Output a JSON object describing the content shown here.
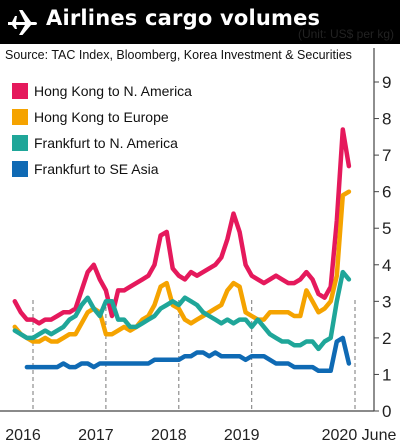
{
  "title": "Airlines cargo volumes",
  "unit": "(Unit: US$ per kg)",
  "source": "Source: TAC Index, Bloomberg, Korea Investment & Securities",
  "icons": {
    "title": "airplane-icon"
  },
  "chart_data": {
    "type": "line",
    "title": "Airlines cargo volumes",
    "ylabel": "",
    "ylim": [
      0,
      9
    ],
    "y_ticks": [
      "0",
      "1",
      "2",
      "3",
      "4",
      "5",
      "6",
      "7",
      "8",
      "9"
    ],
    "x_ticks": [
      {
        "label": "2016",
        "x": "2016-01"
      },
      {
        "label": "2017",
        "x": "2017-01"
      },
      {
        "label": "2018",
        "x": "2018-01"
      },
      {
        "label": "2019",
        "x": "2019-01"
      },
      {
        "label": "2020 June",
        "x": "2020-06"
      }
    ],
    "x_range": [
      "2015-10",
      "2020-07"
    ],
    "grid": false,
    "legend_position": "top-left",
    "series": [
      {
        "name": "Hong Kong to N. America",
        "color": "#e5195c",
        "points": [
          [
            "2015-10",
            3.0
          ],
          [
            "2015-11",
            2.7
          ],
          [
            "2015-12",
            2.5
          ],
          [
            "2016-01",
            2.5
          ],
          [
            "2016-02",
            2.4
          ],
          [
            "2016-03",
            2.5
          ],
          [
            "2016-04",
            2.5
          ],
          [
            "2016-05",
            2.6
          ],
          [
            "2016-06",
            2.7
          ],
          [
            "2016-07",
            2.7
          ],
          [
            "2016-08",
            2.8
          ],
          [
            "2016-09",
            3.3
          ],
          [
            "2016-10",
            3.8
          ],
          [
            "2016-11",
            4.0
          ],
          [
            "2016-12",
            3.6
          ],
          [
            "2017-01",
            3.3
          ],
          [
            "2017-02",
            2.6
          ],
          [
            "2017-03",
            3.3
          ],
          [
            "2017-04",
            3.3
          ],
          [
            "2017-05",
            3.4
          ],
          [
            "2017-06",
            3.5
          ],
          [
            "2017-07",
            3.6
          ],
          [
            "2017-08",
            3.7
          ],
          [
            "2017-09",
            4.0
          ],
          [
            "2017-10",
            4.8
          ],
          [
            "2017-11",
            4.9
          ],
          [
            "2017-12",
            3.9
          ],
          [
            "2018-01",
            3.7
          ],
          [
            "2018-02",
            3.6
          ],
          [
            "2018-03",
            3.8
          ],
          [
            "2018-04",
            3.7
          ],
          [
            "2018-05",
            3.8
          ],
          [
            "2018-06",
            3.9
          ],
          [
            "2018-07",
            4.0
          ],
          [
            "2018-08",
            4.2
          ],
          [
            "2018-09",
            4.7
          ],
          [
            "2018-10",
            5.4
          ],
          [
            "2018-11",
            4.9
          ],
          [
            "2018-12",
            4.0
          ],
          [
            "2019-01",
            3.7
          ],
          [
            "2019-02",
            3.6
          ],
          [
            "2019-03",
            3.5
          ],
          [
            "2019-04",
            3.6
          ],
          [
            "2019-05",
            3.7
          ],
          [
            "2019-06",
            3.6
          ],
          [
            "2019-07",
            3.5
          ],
          [
            "2019-08",
            3.5
          ],
          [
            "2019-09",
            3.6
          ],
          [
            "2019-10",
            3.8
          ],
          [
            "2019-11",
            3.6
          ],
          [
            "2019-12",
            3.2
          ],
          [
            "2020-01",
            3.1
          ],
          [
            "2020-02",
            3.4
          ],
          [
            "2020-03",
            5.2
          ],
          [
            "2020-04",
            7.7
          ],
          [
            "2020-05",
            6.7
          ]
        ]
      },
      {
        "name": "Hong Kong to Europe",
        "color": "#f5a300",
        "points": [
          [
            "2015-10",
            2.3
          ],
          [
            "2015-11",
            2.1
          ],
          [
            "2015-12",
            2.0
          ],
          [
            "2016-01",
            1.9
          ],
          [
            "2016-02",
            1.9
          ],
          [
            "2016-03",
            2.0
          ],
          [
            "2016-04",
            1.9
          ],
          [
            "2016-05",
            1.9
          ],
          [
            "2016-06",
            2.0
          ],
          [
            "2016-07",
            2.1
          ],
          [
            "2016-08",
            2.1
          ],
          [
            "2016-09",
            2.4
          ],
          [
            "2016-10",
            2.7
          ],
          [
            "2016-11",
            2.8
          ],
          [
            "2016-12",
            2.7
          ],
          [
            "2017-01",
            2.1
          ],
          [
            "2017-02",
            2.1
          ],
          [
            "2017-03",
            2.2
          ],
          [
            "2017-04",
            2.3
          ],
          [
            "2017-05",
            2.2
          ],
          [
            "2017-06",
            2.3
          ],
          [
            "2017-07",
            2.5
          ],
          [
            "2017-08",
            2.6
          ],
          [
            "2017-09",
            2.9
          ],
          [
            "2017-10",
            3.4
          ],
          [
            "2017-11",
            3.5
          ],
          [
            "2017-12",
            2.9
          ],
          [
            "2018-01",
            2.8
          ],
          [
            "2018-02",
            2.5
          ],
          [
            "2018-03",
            2.4
          ],
          [
            "2018-04",
            2.5
          ],
          [
            "2018-05",
            2.6
          ],
          [
            "2018-06",
            2.7
          ],
          [
            "2018-07",
            2.8
          ],
          [
            "2018-08",
            2.9
          ],
          [
            "2018-09",
            3.3
          ],
          [
            "2018-10",
            3.5
          ],
          [
            "2018-11",
            3.4
          ],
          [
            "2018-12",
            2.7
          ],
          [
            "2019-01",
            2.6
          ],
          [
            "2019-02",
            2.5
          ],
          [
            "2019-03",
            2.5
          ],
          [
            "2019-04",
            2.7
          ],
          [
            "2019-05",
            2.7
          ],
          [
            "2019-06",
            2.7
          ],
          [
            "2019-07",
            2.7
          ],
          [
            "2019-08",
            2.6
          ],
          [
            "2019-09",
            2.6
          ],
          [
            "2019-10",
            3.3
          ],
          [
            "2019-11",
            3.0
          ],
          [
            "2019-12",
            2.7
          ],
          [
            "2020-01",
            2.8
          ],
          [
            "2020-02",
            3.0
          ],
          [
            "2020-03",
            3.7
          ],
          [
            "2020-04",
            5.9
          ],
          [
            "2020-05",
            6.0
          ]
        ]
      },
      {
        "name": "Frankfurt to N. America",
        "color": "#1fa699",
        "points": [
          [
            "2015-10",
            2.2
          ],
          [
            "2015-11",
            2.1
          ],
          [
            "2015-12",
            2.0
          ],
          [
            "2016-01",
            2.0
          ],
          [
            "2016-02",
            2.1
          ],
          [
            "2016-03",
            2.2
          ],
          [
            "2016-04",
            2.1
          ],
          [
            "2016-05",
            2.2
          ],
          [
            "2016-06",
            2.3
          ],
          [
            "2016-07",
            2.5
          ],
          [
            "2016-08",
            2.6
          ],
          [
            "2016-09",
            2.9
          ],
          [
            "2016-10",
            3.1
          ],
          [
            "2016-11",
            2.8
          ],
          [
            "2016-12",
            2.6
          ],
          [
            "2017-01",
            3.0
          ],
          [
            "2017-02",
            3.0
          ],
          [
            "2017-03",
            2.5
          ],
          [
            "2017-04",
            2.5
          ],
          [
            "2017-05",
            2.3
          ],
          [
            "2017-06",
            2.3
          ],
          [
            "2017-07",
            2.4
          ],
          [
            "2017-08",
            2.5
          ],
          [
            "2017-09",
            2.6
          ],
          [
            "2017-10",
            2.8
          ],
          [
            "2017-11",
            2.9
          ],
          [
            "2017-12",
            3.0
          ],
          [
            "2018-01",
            2.9
          ],
          [
            "2018-02",
            3.1
          ],
          [
            "2018-03",
            3.0
          ],
          [
            "2018-04",
            2.9
          ],
          [
            "2018-05",
            2.7
          ],
          [
            "2018-06",
            2.6
          ],
          [
            "2018-07",
            2.5
          ],
          [
            "2018-08",
            2.4
          ],
          [
            "2018-09",
            2.5
          ],
          [
            "2018-10",
            2.4
          ],
          [
            "2018-11",
            2.5
          ],
          [
            "2018-12",
            2.5
          ],
          [
            "2019-01",
            2.3
          ],
          [
            "2019-02",
            2.5
          ],
          [
            "2019-03",
            2.3
          ],
          [
            "2019-04",
            2.1
          ],
          [
            "2019-05",
            2.0
          ],
          [
            "2019-06",
            1.9
          ],
          [
            "2019-07",
            1.9
          ],
          [
            "2019-08",
            1.8
          ],
          [
            "2019-09",
            1.8
          ],
          [
            "2019-10",
            1.9
          ],
          [
            "2019-11",
            1.9
          ],
          [
            "2019-12",
            1.7
          ],
          [
            "2020-01",
            1.9
          ],
          [
            "2020-02",
            2.0
          ],
          [
            "2020-03",
            3.0
          ],
          [
            "2020-04",
            3.8
          ],
          [
            "2020-05",
            3.6
          ]
        ]
      },
      {
        "name": "Frankfurt to SE Asia",
        "color": "#0f6ab4",
        "points": [
          [
            "2015-12",
            1.2
          ],
          [
            "2016-01",
            1.2
          ],
          [
            "2016-02",
            1.2
          ],
          [
            "2016-03",
            1.2
          ],
          [
            "2016-04",
            1.2
          ],
          [
            "2016-05",
            1.2
          ],
          [
            "2016-06",
            1.3
          ],
          [
            "2016-07",
            1.2
          ],
          [
            "2016-08",
            1.2
          ],
          [
            "2016-09",
            1.3
          ],
          [
            "2016-10",
            1.3
          ],
          [
            "2016-11",
            1.2
          ],
          [
            "2016-12",
            1.3
          ],
          [
            "2017-01",
            1.3
          ],
          [
            "2017-02",
            1.3
          ],
          [
            "2017-03",
            1.3
          ],
          [
            "2017-04",
            1.3
          ],
          [
            "2017-05",
            1.3
          ],
          [
            "2017-06",
            1.3
          ],
          [
            "2017-07",
            1.3
          ],
          [
            "2017-08",
            1.3
          ],
          [
            "2017-09",
            1.4
          ],
          [
            "2017-10",
            1.4
          ],
          [
            "2017-11",
            1.4
          ],
          [
            "2017-12",
            1.4
          ],
          [
            "2018-01",
            1.4
          ],
          [
            "2018-02",
            1.5
          ],
          [
            "2018-03",
            1.5
          ],
          [
            "2018-04",
            1.6
          ],
          [
            "2018-05",
            1.6
          ],
          [
            "2018-06",
            1.5
          ],
          [
            "2018-07",
            1.6
          ],
          [
            "2018-08",
            1.5
          ],
          [
            "2018-09",
            1.5
          ],
          [
            "2018-10",
            1.5
          ],
          [
            "2018-11",
            1.5
          ],
          [
            "2018-12",
            1.4
          ],
          [
            "2019-01",
            1.5
          ],
          [
            "2019-02",
            1.5
          ],
          [
            "2019-03",
            1.5
          ],
          [
            "2019-04",
            1.4
          ],
          [
            "2019-05",
            1.3
          ],
          [
            "2019-06",
            1.3
          ],
          [
            "2019-07",
            1.3
          ],
          [
            "2019-08",
            1.2
          ],
          [
            "2019-09",
            1.2
          ],
          [
            "2019-10",
            1.2
          ],
          [
            "2019-11",
            1.2
          ],
          [
            "2019-12",
            1.1
          ],
          [
            "2020-01",
            1.1
          ],
          [
            "2020-02",
            1.1
          ],
          [
            "2020-03",
            1.9
          ],
          [
            "2020-04",
            2.0
          ],
          [
            "2020-05",
            1.3
          ]
        ]
      }
    ]
  }
}
